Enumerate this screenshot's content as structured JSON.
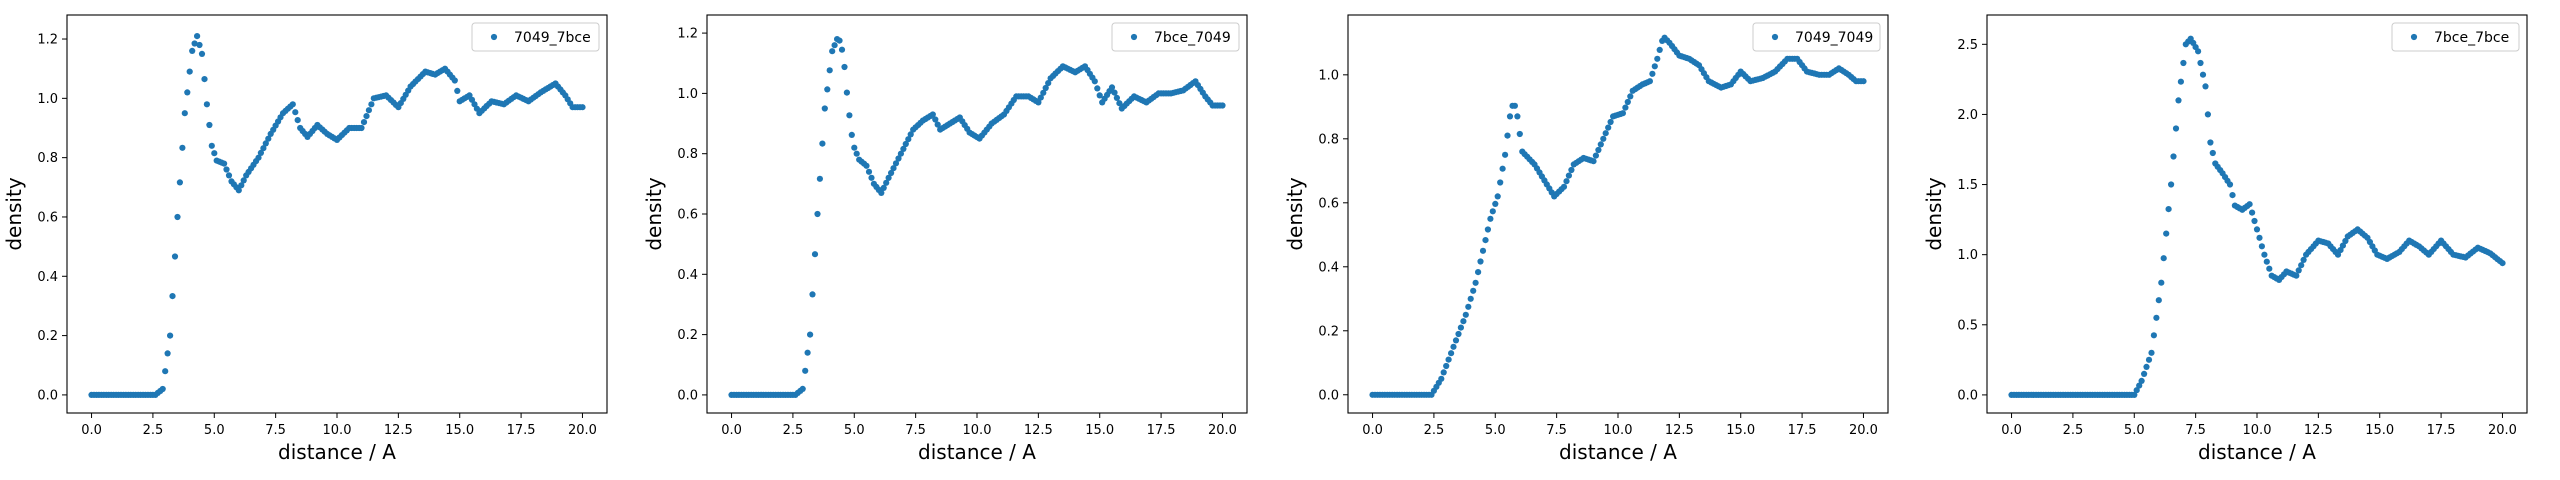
{
  "chart_data": [
    {
      "type": "scatter",
      "title": "",
      "xlabel": "distance / A",
      "ylabel": "density",
      "xlim": [
        -1.0,
        21.0
      ],
      "ylim": [
        -0.061,
        1.281
      ],
      "xticks": [
        0.0,
        2.5,
        5.0,
        7.5,
        10.0,
        12.5,
        15.0,
        17.5,
        20.0
      ],
      "xtick_labels": [
        "0.0",
        "2.5",
        "5.0",
        "7.5",
        "10.0",
        "12.5",
        "15.0",
        "17.5",
        "20.0"
      ],
      "yticks": [
        0.0,
        0.2,
        0.4,
        0.6,
        0.8,
        1.0,
        1.2
      ],
      "ytick_labels": [
        "0.0",
        "0.2",
        "0.4",
        "0.6",
        "0.8",
        "1.0",
        "1.2"
      ],
      "legend_position": "upper right",
      "grid": false,
      "series": [
        {
          "name": "7049_7bce",
          "color": "#1f77b4",
          "marker": "dot",
          "x_range": [
            0,
            20
          ],
          "n_points": 201,
          "keypoints": [
            [
              0,
              0
            ],
            [
              2.6,
              0
            ],
            [
              2.9,
              0.02
            ],
            [
              3.2,
              0.2
            ],
            [
              3.5,
              0.6
            ],
            [
              3.8,
              0.95
            ],
            [
              4.1,
              1.16
            ],
            [
              4.3,
              1.21
            ],
            [
              4.5,
              1.15
            ],
            [
              4.7,
              0.98
            ],
            [
              4.9,
              0.84
            ],
            [
              5.1,
              0.79
            ],
            [
              5.4,
              0.78
            ],
            [
              5.7,
              0.72
            ],
            [
              6.0,
              0.69
            ],
            [
              6.3,
              0.74
            ],
            [
              6.8,
              0.8
            ],
            [
              7.3,
              0.88
            ],
            [
              7.8,
              0.95
            ],
            [
              8.2,
              0.98
            ],
            [
              8.5,
              0.9
            ],
            [
              8.8,
              0.87
            ],
            [
              9.2,
              0.91
            ],
            [
              9.6,
              0.88
            ],
            [
              10.0,
              0.86
            ],
            [
              10.5,
              0.9
            ],
            [
              11.0,
              0.9
            ],
            [
              11.5,
              1.0
            ],
            [
              12.0,
              1.01
            ],
            [
              12.5,
              0.97
            ],
            [
              13.0,
              1.04
            ],
            [
              13.6,
              1.09
            ],
            [
              14.0,
              1.08
            ],
            [
              14.4,
              1.1
            ],
            [
              14.8,
              1.06
            ],
            [
              15.0,
              0.99
            ],
            [
              15.4,
              1.01
            ],
            [
              15.8,
              0.95
            ],
            [
              16.3,
              0.99
            ],
            [
              16.8,
              0.98
            ],
            [
              17.3,
              1.01
            ],
            [
              17.8,
              0.99
            ],
            [
              18.3,
              1.02
            ],
            [
              18.9,
              1.05
            ],
            [
              19.3,
              1.01
            ],
            [
              19.6,
              0.97
            ],
            [
              20.0,
              0.97
            ]
          ]
        }
      ]
    },
    {
      "type": "scatter",
      "title": "",
      "xlabel": "distance / A",
      "ylabel": "density",
      "xlim": [
        -1.0,
        21.0
      ],
      "ylim": [
        -0.06,
        1.26
      ],
      "xticks": [
        0.0,
        2.5,
        5.0,
        7.5,
        10.0,
        12.5,
        15.0,
        17.5,
        20.0
      ],
      "xtick_labels": [
        "0.0",
        "2.5",
        "5.0",
        "7.5",
        "10.0",
        "12.5",
        "15.0",
        "17.5",
        "20.0"
      ],
      "yticks": [
        0.0,
        0.2,
        0.4,
        0.6,
        0.8,
        1.0,
        1.2
      ],
      "ytick_labels": [
        "0.0",
        "0.2",
        "0.4",
        "0.6",
        "0.8",
        "1.0",
        "1.2"
      ],
      "legend_position": "upper right",
      "grid": false,
      "series": [
        {
          "name": "7bce_7049",
          "color": "#1f77b4",
          "marker": "dot",
          "x_range": [
            0,
            20
          ],
          "n_points": 201,
          "keypoints": [
            [
              0,
              0
            ],
            [
              2.6,
              0
            ],
            [
              2.9,
              0.02
            ],
            [
              3.2,
              0.2
            ],
            [
              3.5,
              0.6
            ],
            [
              3.8,
              0.95
            ],
            [
              4.1,
              1.14
            ],
            [
              4.35,
              1.19
            ],
            [
              4.55,
              1.13
            ],
            [
              4.75,
              0.96
            ],
            [
              4.95,
              0.83
            ],
            [
              5.2,
              0.78
            ],
            [
              5.5,
              0.76
            ],
            [
              5.8,
              0.7
            ],
            [
              6.1,
              0.67
            ],
            [
              6.4,
              0.72
            ],
            [
              6.9,
              0.8
            ],
            [
              7.4,
              0.88
            ],
            [
              7.8,
              0.91
            ],
            [
              8.2,
              0.93
            ],
            [
              8.5,
              0.88
            ],
            [
              8.9,
              0.9
            ],
            [
              9.3,
              0.92
            ],
            [
              9.7,
              0.87
            ],
            [
              10.1,
              0.85
            ],
            [
              10.6,
              0.9
            ],
            [
              11.1,
              0.93
            ],
            [
              11.6,
              0.99
            ],
            [
              12.1,
              0.99
            ],
            [
              12.5,
              0.97
            ],
            [
              13.0,
              1.05
            ],
            [
              13.5,
              1.09
            ],
            [
              14.0,
              1.07
            ],
            [
              14.4,
              1.09
            ],
            [
              14.8,
              1.04
            ],
            [
              15.1,
              0.97
            ],
            [
              15.5,
              1.02
            ],
            [
              15.9,
              0.95
            ],
            [
              16.4,
              0.99
            ],
            [
              16.9,
              0.97
            ],
            [
              17.4,
              1.0
            ],
            [
              17.9,
              1.0
            ],
            [
              18.4,
              1.01
            ],
            [
              18.9,
              1.04
            ],
            [
              19.3,
              0.99
            ],
            [
              19.6,
              0.96
            ],
            [
              20.0,
              0.96
            ]
          ]
        }
      ]
    },
    {
      "type": "scatter",
      "title": "",
      "xlabel": "distance / A",
      "ylabel": "density",
      "xlim": [
        -1.0,
        21.0
      ],
      "ylim": [
        -0.057,
        1.187
      ],
      "xticks": [
        0.0,
        2.5,
        5.0,
        7.5,
        10.0,
        12.5,
        15.0,
        17.5,
        20.0
      ],
      "xtick_labels": [
        "0.0",
        "2.5",
        "5.0",
        "7.5",
        "10.0",
        "12.5",
        "15.0",
        "17.5",
        "20.0"
      ],
      "yticks": [
        0.0,
        0.2,
        0.4,
        0.6,
        0.8,
        1.0
      ],
      "ytick_labels": [
        "0.0",
        "0.2",
        "0.4",
        "0.6",
        "0.8",
        "1.0"
      ],
      "legend_position": "upper right",
      "grid": false,
      "series": [
        {
          "name": "7049_7049",
          "color": "#1f77b4",
          "marker": "dot",
          "x_range": [
            0,
            20
          ],
          "n_points": 201,
          "keypoints": [
            [
              0,
              0
            ],
            [
              2.4,
              0
            ],
            [
              2.8,
              0.05
            ],
            [
              3.3,
              0.15
            ],
            [
              3.8,
              0.25
            ],
            [
              4.2,
              0.35
            ],
            [
              4.5,
              0.45
            ],
            [
              4.8,
              0.55
            ],
            [
              5.1,
              0.62
            ],
            [
              5.4,
              0.75
            ],
            [
              5.6,
              0.87
            ],
            [
              5.75,
              0.92
            ],
            [
              5.9,
              0.87
            ],
            [
              6.1,
              0.76
            ],
            [
              6.6,
              0.72
            ],
            [
              7.0,
              0.67
            ],
            [
              7.4,
              0.62
            ],
            [
              7.8,
              0.65
            ],
            [
              8.2,
              0.72
            ],
            [
              8.6,
              0.74
            ],
            [
              9.0,
              0.73
            ],
            [
              9.4,
              0.8
            ],
            [
              9.8,
              0.87
            ],
            [
              10.2,
              0.88
            ],
            [
              10.6,
              0.95
            ],
            [
              11.0,
              0.97
            ],
            [
              11.3,
              0.98
            ],
            [
              11.6,
              1.05
            ],
            [
              11.85,
              1.12
            ],
            [
              12.1,
              1.1
            ],
            [
              12.5,
              1.06
            ],
            [
              12.9,
              1.05
            ],
            [
              13.3,
              1.03
            ],
            [
              13.7,
              0.98
            ],
            [
              14.2,
              0.96
            ],
            [
              14.6,
              0.97
            ],
            [
              15.0,
              1.01
            ],
            [
              15.4,
              0.98
            ],
            [
              15.9,
              0.99
            ],
            [
              16.4,
              1.01
            ],
            [
              16.9,
              1.05
            ],
            [
              17.3,
              1.05
            ],
            [
              17.7,
              1.01
            ],
            [
              18.2,
              1.0
            ],
            [
              18.6,
              1.0
            ],
            [
              19.0,
              1.02
            ],
            [
              19.4,
              1.0
            ],
            [
              19.7,
              0.98
            ],
            [
              20.0,
              0.98
            ]
          ]
        }
      ]
    },
    {
      "type": "scatter",
      "title": "",
      "xlabel": "distance / A",
      "ylabel": "density",
      "xlim": [
        -1.0,
        21.0
      ],
      "ylim": [
        -0.129,
        2.709
      ],
      "xticks": [
        0.0,
        2.5,
        5.0,
        7.5,
        10.0,
        12.5,
        15.0,
        17.5,
        20.0
      ],
      "xtick_labels": [
        "0.0",
        "2.5",
        "5.0",
        "7.5",
        "10.0",
        "12.5",
        "15.0",
        "17.5",
        "20.0"
      ],
      "yticks": [
        0.0,
        0.5,
        1.0,
        1.5,
        2.0,
        2.5
      ],
      "ytick_labels": [
        "0.0",
        "0.5",
        "1.0",
        "1.5",
        "2.0",
        "2.5"
      ],
      "legend_position": "upper right",
      "grid": false,
      "series": [
        {
          "name": "7bce_7bce",
          "color": "#1f77b4",
          "marker": "dot",
          "x_range": [
            0,
            20
          ],
          "n_points": 201,
          "keypoints": [
            [
              0,
              0
            ],
            [
              5.0,
              0
            ],
            [
              5.3,
              0.1
            ],
            [
              5.7,
              0.3
            ],
            [
              6.1,
              0.8
            ],
            [
              6.5,
              1.5
            ],
            [
              6.8,
              2.1
            ],
            [
              7.1,
              2.5
            ],
            [
              7.3,
              2.54
            ],
            [
              7.6,
              2.45
            ],
            [
              7.9,
              2.2
            ],
            [
              8.1,
              1.8
            ],
            [
              8.3,
              1.65
            ],
            [
              8.6,
              1.58
            ],
            [
              8.9,
              1.5
            ],
            [
              9.1,
              1.35
            ],
            [
              9.4,
              1.32
            ],
            [
              9.7,
              1.36
            ],
            [
              10.0,
              1.18
            ],
            [
              10.3,
              1.0
            ],
            [
              10.6,
              0.85
            ],
            [
              10.9,
              0.82
            ],
            [
              11.2,
              0.88
            ],
            [
              11.6,
              0.85
            ],
            [
              12.0,
              1.0
            ],
            [
              12.5,
              1.1
            ],
            [
              12.9,
              1.08
            ],
            [
              13.3,
              1.0
            ],
            [
              13.7,
              1.13
            ],
            [
              14.1,
              1.18
            ],
            [
              14.5,
              1.12
            ],
            [
              14.9,
              1.0
            ],
            [
              15.3,
              0.97
            ],
            [
              15.8,
              1.02
            ],
            [
              16.2,
              1.1
            ],
            [
              16.6,
              1.06
            ],
            [
              17.0,
              1.0
            ],
            [
              17.5,
              1.1
            ],
            [
              18.0,
              1.0
            ],
            [
              18.5,
              0.98
            ],
            [
              19.0,
              1.05
            ],
            [
              19.5,
              1.01
            ],
            [
              20.0,
              0.94
            ]
          ]
        }
      ]
    }
  ]
}
